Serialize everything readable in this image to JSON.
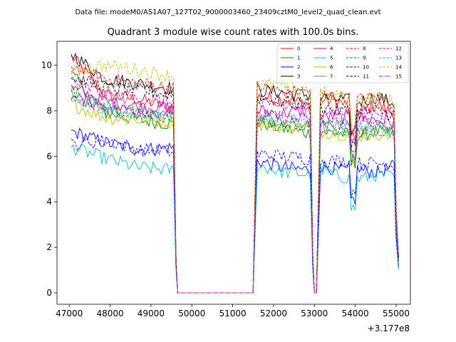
{
  "chart_data": {
    "type": "line",
    "suptitle": "Data file: modeM0/AS1A07_127T02_9000003460_23409cztM0_level2_quad_clean.evt",
    "title": "Quadrant 3 module wise count rates with 100.0s bins.",
    "xlabel": "",
    "ylabel": "",
    "x_offset_label": "+3.177e8",
    "xlim": [
      46700,
      55350
    ],
    "ylim": [
      -0.5,
      11.05
    ],
    "xticks": [
      47000,
      48000,
      49000,
      50000,
      51000,
      52000,
      53000,
      54000,
      55000
    ],
    "yticks": [
      0,
      2,
      4,
      6,
      8,
      10
    ],
    "grid": false,
    "legend_position": "top-right",
    "gaps": [
      [
        49600,
        51600
      ],
      [
        52900,
        53150
      ]
    ],
    "segments": [
      [
        47050,
        49550
      ],
      [
        51600,
        52900
      ],
      [
        53150,
        55000
      ]
    ],
    "series": [
      {
        "name": "0",
        "color": "#ff0000",
        "dash": "solid",
        "anchors": [
          10.4,
          8.7,
          8.5,
          8.1,
          8.6,
          8.5,
          8.3,
          8.5,
          8.4,
          7.9,
          8.3,
          7.8
        ]
      },
      {
        "name": "1",
        "color": "#008000",
        "dash": "solid",
        "anchors": [
          9.6,
          7.9,
          7.6,
          7.4,
          7.5,
          7.2,
          7.0,
          7.1,
          7.0,
          6.9,
          7.1,
          7.0
        ]
      },
      {
        "name": "2",
        "color": "#0000ff",
        "dash": "solid",
        "anchors": [
          7.1,
          6.6,
          6.3,
          6.4,
          5.8,
          5.5,
          5.4,
          5.6,
          5.4,
          5.4,
          5.3,
          5.6
        ]
      },
      {
        "name": "3",
        "color": "#000000",
        "dash": "solid",
        "anchors": [
          10.5,
          9.4,
          9.2,
          9.0,
          8.9,
          8.8,
          8.7,
          8.6,
          8.5,
          8.4,
          8.6,
          8.3
        ]
      },
      {
        "name": "4",
        "color": "#bf00bf",
        "dash": "solid",
        "anchors": [
          9.0,
          8.4,
          8.2,
          8.1,
          8.0,
          7.9,
          8.0,
          7.8,
          7.7,
          7.7,
          7.6,
          7.5
        ]
      },
      {
        "name": "5",
        "color": "#00bfbf",
        "dash": "solid",
        "anchors": [
          6.4,
          5.9,
          5.5,
          5.4,
          5.6,
          5.3,
          5.2,
          5.4,
          5.1,
          5.0,
          5.2,
          5.1
        ]
      },
      {
        "name": "6",
        "color": "#bfbf00",
        "dash": "solid",
        "anchors": [
          8.3,
          7.7,
          7.6,
          7.5,
          7.4,
          7.3,
          7.2,
          7.1,
          7.0,
          6.9,
          7.0,
          6.9
        ]
      },
      {
        "name": "7",
        "color": "#808080",
        "dash": "solid",
        "anchors": [
          8.7,
          8.1,
          7.9,
          7.8,
          7.7,
          7.6,
          7.5,
          7.4,
          7.3,
          7.2,
          7.3,
          7.1
        ]
      },
      {
        "name": "8",
        "color": "#ff0000",
        "dash": "dashed",
        "anchors": [
          10.0,
          9.4,
          9.2,
          9.0,
          9.1,
          8.8,
          8.9,
          8.7,
          8.6,
          8.5,
          8.6,
          8.3
        ]
      },
      {
        "name": "9",
        "color": "#008000",
        "dash": "dashed",
        "anchors": [
          8.9,
          8.1,
          7.8,
          7.7,
          7.6,
          7.4,
          7.3,
          7.3,
          7.2,
          7.1,
          7.2,
          7.0
        ]
      },
      {
        "name": "10",
        "color": "#0000ff",
        "dash": "dashed",
        "anchors": [
          6.5,
          6.7,
          6.3,
          6.2,
          6.1,
          6.0,
          5.9,
          5.8,
          5.8,
          5.7,
          5.7,
          5.6
        ]
      },
      {
        "name": "11",
        "color": "#000000",
        "dash": "dashed",
        "anchors": [
          9.5,
          9.0,
          8.9,
          8.7,
          8.6,
          8.4,
          8.3,
          8.2,
          8.0,
          7.9,
          8.0,
          7.8
        ]
      },
      {
        "name": "12",
        "color": "#bf00bf",
        "dash": "dashed",
        "anchors": [
          9.3,
          8.7,
          8.5,
          8.4,
          8.3,
          8.2,
          8.1,
          8.0,
          8.0,
          7.9,
          8.0,
          7.8
        ]
      },
      {
        "name": "13",
        "color": "#00bfbf",
        "dash": "dashed",
        "anchors": [
          8.6,
          8.1,
          7.9,
          7.8,
          7.7,
          7.6,
          7.5,
          7.4,
          7.3,
          7.2,
          7.3,
          7.1
        ]
      },
      {
        "name": "14",
        "color": "#bfbf00",
        "dash": "dashed",
        "anchors": [
          9.8,
          10.0,
          9.8,
          9.5,
          9.2,
          9.1,
          8.9,
          8.8,
          8.6,
          8.5,
          8.6,
          8.4
        ]
      },
      {
        "name": "15",
        "color": "#bf00bf",
        "dash": "dashdot",
        "anchors": [
          8.6,
          8.2,
          8.0,
          7.9,
          7.8,
          7.7,
          7.6,
          7.5,
          7.5,
          7.4,
          7.5,
          7.3
        ]
      }
    ]
  }
}
